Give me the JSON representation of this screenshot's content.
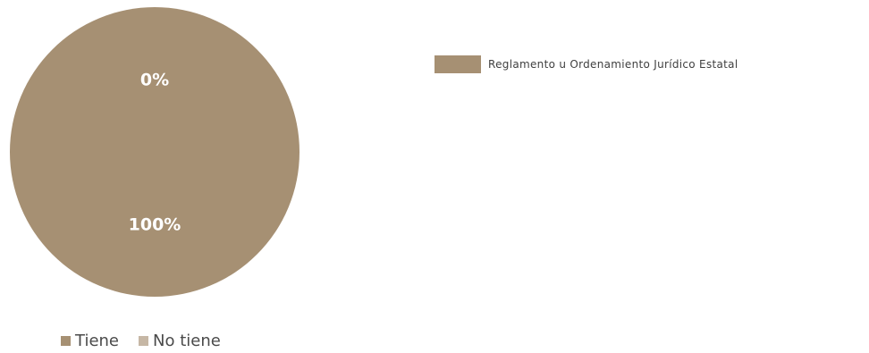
{
  "chart_data": {
    "type": "pie",
    "title": "",
    "series": [
      {
        "name": "Reglamento u Ordenamiento Jurídico Estatal",
        "color": "#a69073",
        "slices": [
          {
            "label": "Tiene",
            "value": 100,
            "display": "100%",
            "color": "#a69073"
          },
          {
            "label": "No tiene",
            "value": 0,
            "display": "0%",
            "color": "#c6b7a5"
          }
        ]
      }
    ],
    "legend": {
      "position": "bottom",
      "entries": [
        "Tiene",
        "No tiene"
      ]
    },
    "series_legend": {
      "position": "top-right",
      "entries": [
        "Reglamento u Ordenamiento Jurídico Estatal"
      ]
    }
  }
}
